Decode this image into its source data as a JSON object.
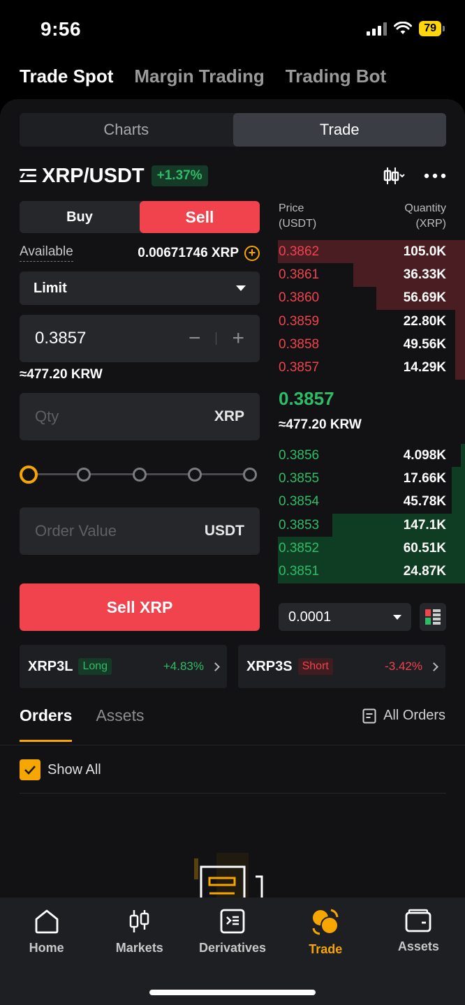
{
  "status_bar": {
    "time": "9:56",
    "battery": "79"
  },
  "top_tabs": [
    {
      "label": "Trade Spot",
      "active": true
    },
    {
      "label": "Margin Trading",
      "active": false
    },
    {
      "label": "Trading Bot",
      "active": false
    }
  ],
  "view_toggle": {
    "charts": "Charts",
    "trade": "Trade",
    "active": "Trade"
  },
  "pair": {
    "name": "XRP/USDT",
    "change": "+1.37%"
  },
  "order_form": {
    "buy": "Buy",
    "sell": "Sell",
    "available_label": "Available",
    "available_value": "0.00671746 XRP",
    "order_type": "Limit",
    "price": "0.3857",
    "price_krw": "≈477.20 KRW",
    "qty_placeholder": "Qty",
    "qty_unit": "XRP",
    "slider_percent": 0,
    "order_value_placeholder": "Order Value",
    "order_value_unit": "USDT",
    "submit": "Sell XRP"
  },
  "orderbook": {
    "price_header": "Price",
    "price_unit": "(USDT)",
    "qty_header": "Quantity",
    "qty_unit": "(XRP)",
    "asks": [
      {
        "price": "0.3862",
        "qty": "105.0K",
        "depth": 0.97
      },
      {
        "price": "0.3861",
        "qty": "36.33K",
        "depth": 0.58
      },
      {
        "price": "0.3860",
        "qty": "56.69K",
        "depth": 0.46
      },
      {
        "price": "0.3859",
        "qty": "22.80K",
        "depth": 0.05
      },
      {
        "price": "0.3858",
        "qty": "49.56K",
        "depth": 0.05
      },
      {
        "price": "0.3857",
        "qty": "14.29K",
        "depth": 0.05
      }
    ],
    "mid_price": "0.3857",
    "mid_krw": "≈477.20 KRW",
    "bids": [
      {
        "price": "0.3856",
        "qty": "4.098K",
        "depth": 0.02
      },
      {
        "price": "0.3855",
        "qty": "17.66K",
        "depth": 0.07
      },
      {
        "price": "0.3854",
        "qty": "45.78K",
        "depth": 0.07
      },
      {
        "price": "0.3853",
        "qty": "147.1K",
        "depth": 0.69
      },
      {
        "price": "0.3852",
        "qty": "60.51K",
        "depth": 0.97
      },
      {
        "price": "0.3851",
        "qty": "24.87K",
        "depth": 0.97
      }
    ],
    "tick_size": "0.0001"
  },
  "leveraged": [
    {
      "name": "XRP3L",
      "tag": "Long",
      "change": "+4.83%"
    },
    {
      "name": "XRP3S",
      "tag": "Short",
      "change": "-3.42%"
    }
  ],
  "orders": {
    "tabs": [
      {
        "label": "Orders",
        "active": true
      },
      {
        "label": "Assets",
        "active": false
      }
    ],
    "all_orders": "All Orders",
    "show_all": "Show All"
  },
  "bottom_nav": [
    {
      "label": "Home",
      "icon": "home-icon",
      "active": false
    },
    {
      "label": "Markets",
      "icon": "markets-icon",
      "active": false
    },
    {
      "label": "Derivatives",
      "icon": "derivatives-icon",
      "active": false
    },
    {
      "label": "Trade",
      "icon": "trade-icon",
      "active": true
    },
    {
      "label": "Assets",
      "icon": "wallet-icon",
      "active": false
    }
  ],
  "colors": {
    "accent": "#f7a600",
    "sell": "#f0434e",
    "buy": "#2ebd67"
  }
}
